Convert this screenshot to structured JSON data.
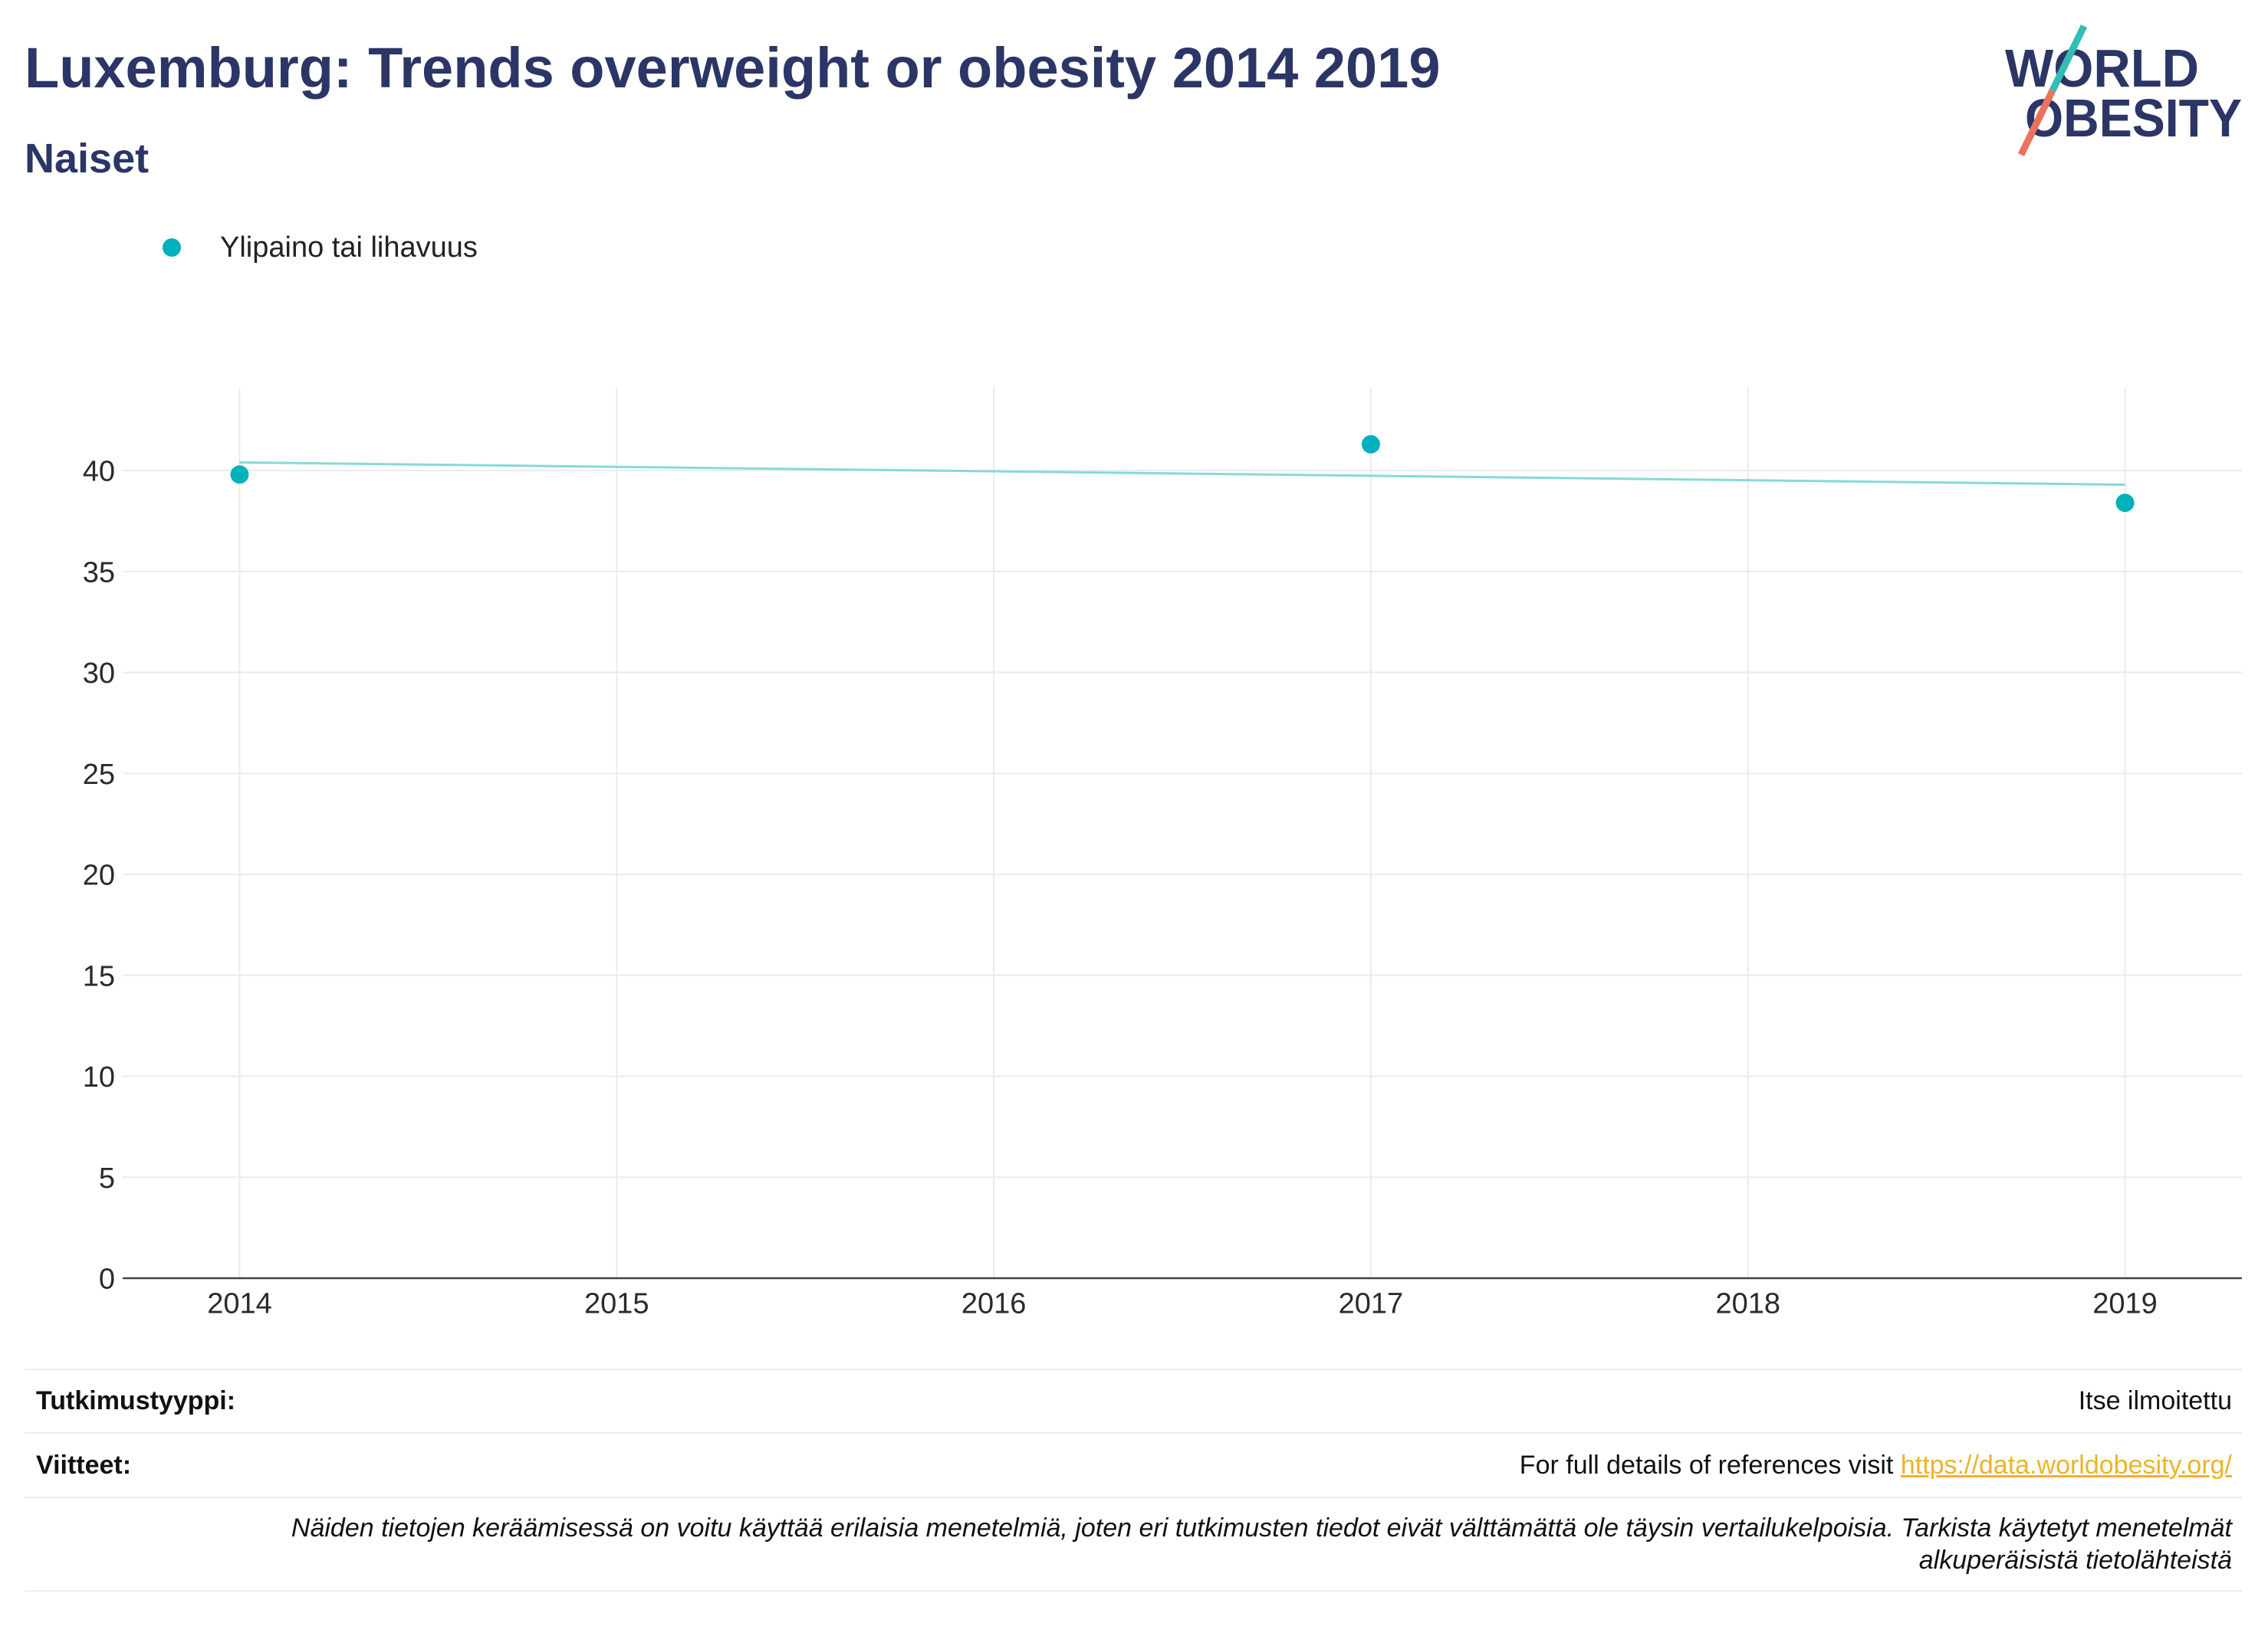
{
  "chart_data": {
    "type": "scatter",
    "title": "Luxemburg: Trends overweight or obesity 2014 2019",
    "subtitle": "Naiset",
    "xlabel": "",
    "ylabel": "",
    "x": [
      2014,
      2017,
      2019
    ],
    "series": [
      {
        "name": "Ylipaino tai lihavuus",
        "values": [
          39.8,
          41.3,
          38.4
        ]
      }
    ],
    "trendline": {
      "x": [
        2014,
        2019
      ],
      "y": [
        40.4,
        39.3
      ]
    },
    "xlim": [
      2013.69,
      2019.31
    ],
    "ylim": [
      0,
      44.1
    ],
    "xticks": [
      2014,
      2015,
      2016,
      2017,
      2018,
      2019
    ],
    "yticks": [
      0,
      5,
      10,
      15,
      20,
      25,
      30,
      35,
      40
    ],
    "grid": true,
    "legend_position": "top-left"
  },
  "logo": {
    "line1": "WORLD",
    "line2": "OBESITY"
  },
  "footer": {
    "study_type_label": "Tutkimustyyppi:",
    "study_type_value": "Itse ilmoitettu",
    "references_label": "Viitteet:",
    "references_text": "For full details of references visit",
    "references_link": "https://data.worldobesity.org/",
    "note": "Näiden tietojen keräämisessä on voitu käyttää erilaisia menetelmiä, joten eri tutkimusten tiedot eivät välttämättä ole täysin vertailukelpoisia. Tarkista käytetyt menetelmät alkuperäisistä tietolähteistä"
  },
  "colors": {
    "title": "#2b3566",
    "series": "#00b0bb",
    "trend": "#86d9d9",
    "grid": "#ebebeb",
    "axis": "#444444",
    "rule": "#e9edf5",
    "link": "#ebb42a",
    "logo_navy": "#2b3566",
    "logo_teal": "#33bcb8",
    "logo_coral": "#e8735e"
  }
}
